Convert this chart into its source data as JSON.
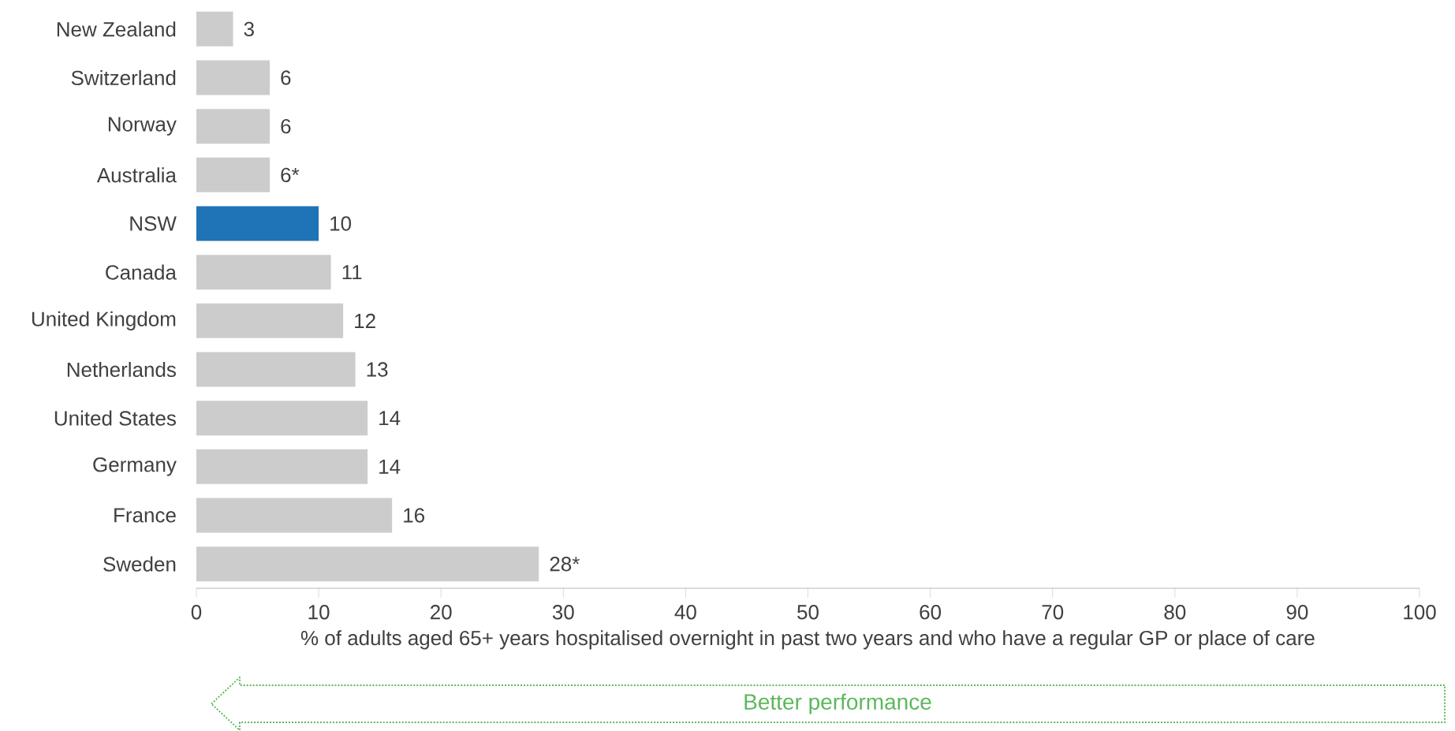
{
  "chart_data": {
    "type": "bar",
    "orientation": "horizontal",
    "categories": [
      "New Zealand",
      "Switzerland",
      "Norway",
      "Australia",
      "NSW",
      "Canada",
      "United Kingdom",
      "Netherlands",
      "United States",
      "Germany",
      "France",
      "Sweden"
    ],
    "values": [
      3,
      6,
      6,
      6,
      10,
      11,
      12,
      13,
      14,
      14,
      16,
      28
    ],
    "colors": [
      "#cccccc",
      "#cccccc",
      "#cccccc",
      "#cccccc",
      "#1f73b7",
      "#cccccc",
      "#cccccc",
      "#cccccc",
      "#cccccc",
      "#cccccc",
      "#cccccc",
      "#cccccc"
    ],
    "value_labels": [
      "3",
      "6",
      "6",
      "6*",
      "10",
      "11",
      "12",
      "13",
      "14",
      "14",
      "16",
      "28*"
    ],
    "xlim": [
      0,
      100
    ],
    "xticks": [
      0,
      10,
      20,
      30,
      40,
      50,
      60,
      70,
      80,
      90,
      100
    ],
    "xlabel": "% of adults aged 65+ years hospitalised overnight in past two years and who have a regular GP or place of care",
    "annotations": [
      "Better performance"
    ]
  }
}
